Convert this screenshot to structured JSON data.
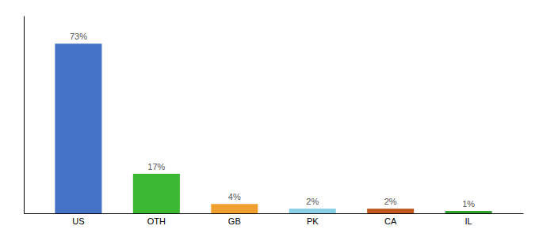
{
  "chart_data": {
    "type": "bar",
    "categories": [
      "US",
      "OTH",
      "GB",
      "PK",
      "CA",
      "IL"
    ],
    "values": [
      73,
      17,
      4,
      2,
      2,
      1
    ],
    "value_labels": [
      "73%",
      "17%",
      "4%",
      "2%",
      "2%",
      "1%"
    ],
    "colors": [
      "#4472c4",
      "#3cb832",
      "#f0a030",
      "#88cfe8",
      "#c05820",
      "#2d9e2d"
    ],
    "ylim": [
      0,
      85
    ],
    "data_labels": true,
    "tick_labels": "x"
  }
}
